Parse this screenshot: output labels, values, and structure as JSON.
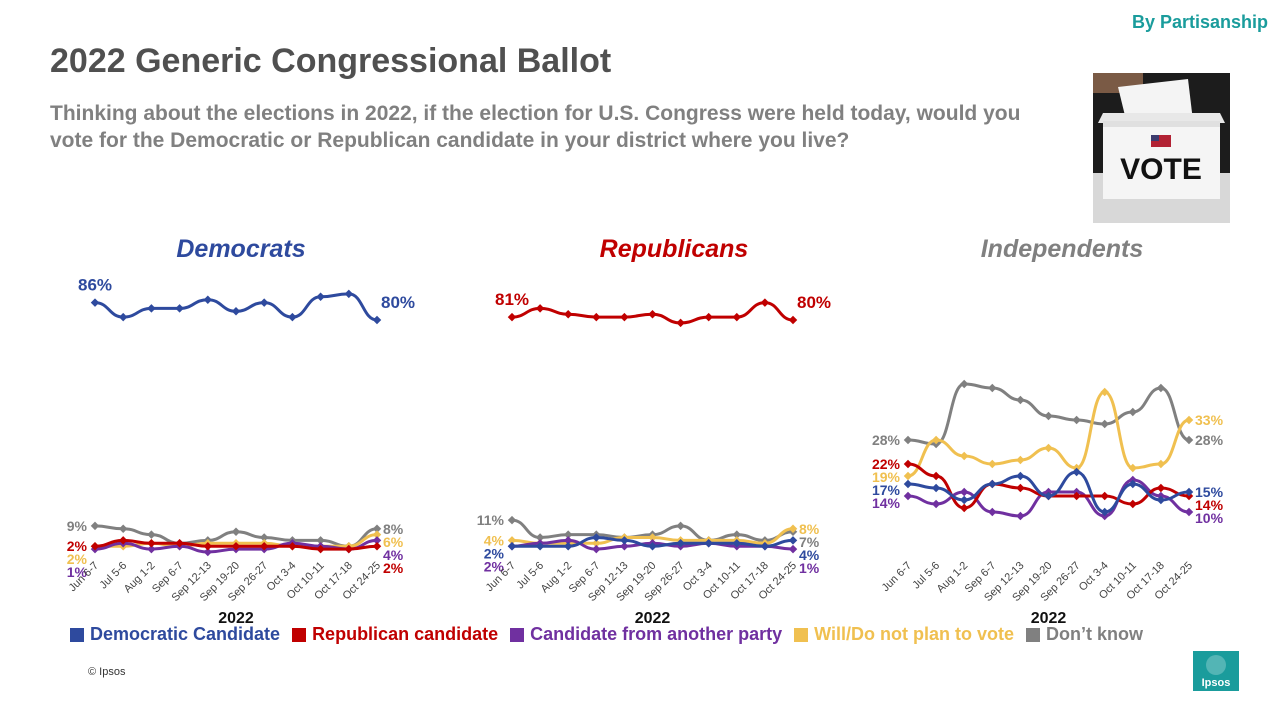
{
  "header": {
    "tag": "By Partisanship",
    "title": "2022 Generic Congressional Ballot",
    "question": "Thinking about the elections in 2022, if the election for U.S. Congress were held today, would you vote for the Democratic or Republican candidate in your district where you live?"
  },
  "image": {
    "vote_text": "VOTE"
  },
  "footer": {
    "copyright": "© Ipsos",
    "logo_text": "Ipsos"
  },
  "legend": [
    {
      "label": "Democratic Candidate",
      "color": "#2e4a9e"
    },
    {
      "label": "Republican candidate",
      "color": "#c00000"
    },
    {
      "label": "Candidate from another party",
      "color": "#7030a0"
    },
    {
      "label": "Will/Do not plan to vote",
      "color": "#f0c050"
    },
    {
      "label": "Don’t know",
      "color": "#808080"
    }
  ],
  "colors": {
    "dem": "#2e4a9e",
    "rep": "#c00000",
    "other": "#7030a0",
    "novote": "#f0c050",
    "dk": "#808080",
    "accent": "#1a9c9c"
  },
  "chart_data": [
    {
      "type": "line",
      "title": "Democrats",
      "title_color": "#2e4a9e",
      "xlabel": "2022",
      "categories": [
        "Jun 6-7",
        "Jul 5-6",
        "Aug 1-2",
        "Sep 6-7",
        "Sep 12-13",
        "Sep 19-20",
        "Sep 26-27",
        "Oct 3-4",
        "Oct 10-11",
        "Oct 17-18",
        "Oct 24-25"
      ],
      "series": [
        {
          "name": "Democratic Candidate",
          "values": [
            86,
            81,
            84,
            84,
            87,
            83,
            86,
            81,
            88,
            89,
            80
          ],
          "labels": {
            "0": "86%",
            "10": "80%"
          }
        },
        {
          "name": "Republican candidate",
          "values": [
            2,
            4,
            3,
            3,
            2,
            2,
            2,
            2,
            1,
            1,
            2
          ],
          "labels": {
            "0": "2%",
            "10": "2%"
          }
        },
        {
          "name": "Candidate from another party",
          "values": [
            1,
            3,
            1,
            2,
            0,
            1,
            1,
            3,
            2,
            1,
            4
          ],
          "labels": {
            "0": "1%",
            "10": "4%"
          }
        },
        {
          "name": "Will/Do not plan to vote",
          "values": [
            2,
            2,
            3,
            2,
            3,
            3,
            3,
            2,
            2,
            2,
            6
          ],
          "labels": {
            "0": "2%",
            "10": "6%"
          }
        },
        {
          "name": "Don’t know",
          "values": [
            9,
            8,
            6,
            3,
            4,
            7,
            5,
            4,
            4,
            2,
            8
          ],
          "labels": {
            "0": "9%",
            "10": "8%"
          }
        }
      ]
    },
    {
      "type": "line",
      "title": "Republicans",
      "title_color": "#c00000",
      "xlabel": "2022",
      "categories": [
        "Jun 6-7",
        "Jul 5-6",
        "Aug 1-2",
        "Sep 6-7",
        "Sep 12-13",
        "Sep 19-20",
        "Sep 26-27",
        "Oct 3-4",
        "Oct 10-11",
        "Oct 17-18",
        "Oct 24-25"
      ],
      "series": [
        {
          "name": "Democratic Candidate",
          "values": [
            2,
            2,
            2,
            5,
            4,
            2,
            3,
            3,
            3,
            2,
            4
          ],
          "labels": {
            "0": "2%",
            "10": "4%"
          }
        },
        {
          "name": "Republican candidate",
          "values": [
            81,
            84,
            82,
            81,
            81,
            82,
            79,
            81,
            81,
            86,
            80
          ],
          "labels": {
            "0": "81%",
            "10": "80%"
          }
        },
        {
          "name": "Candidate from another party",
          "values": [
            2,
            3,
            4,
            1,
            2,
            3,
            2,
            3,
            2,
            2,
            1
          ],
          "labels": {
            "0": "2%",
            "10": "1%"
          }
        },
        {
          "name": "Will/Do not plan to vote",
          "values": [
            4,
            3,
            3,
            3,
            5,
            5,
            4,
            4,
            4,
            3,
            8
          ],
          "labels": {
            "0": "4%",
            "10": "8%"
          }
        },
        {
          "name": "Don’t know",
          "values": [
            11,
            5,
            6,
            6,
            5,
            6,
            9,
            4,
            6,
            4,
            7
          ],
          "labels": {
            "0": "11%",
            "10": "7%"
          }
        }
      ]
    },
    {
      "type": "line",
      "title": "Independents",
      "title_color": "#808080",
      "xlabel": "2022",
      "categories": [
        "Jun 6-7",
        "Jul 5-6",
        "Aug 1-2",
        "Sep 6-7",
        "Sep 12-13",
        "Sep 19-20",
        "Sep 26-27",
        "Oct 3-4",
        "Oct 10-11",
        "Oct 17-18",
        "Oct 24-25"
      ],
      "series": [
        {
          "name": "Democratic Candidate",
          "values": [
            17,
            16,
            13,
            17,
            19,
            14,
            20,
            10,
            17,
            13,
            15
          ],
          "labels": {
            "0": "17%",
            "10": "15%"
          }
        },
        {
          "name": "Republican candidate",
          "values": [
            22,
            19,
            11,
            17,
            16,
            14,
            14,
            14,
            12,
            16,
            14
          ],
          "labels": {
            "0": "22%",
            "10": "14%"
          }
        },
        {
          "name": "Candidate from another party",
          "values": [
            14,
            12,
            15,
            10,
            9,
            15,
            15,
            9,
            18,
            14,
            10
          ],
          "labels": {
            "0": "14%",
            "10": "10%"
          }
        },
        {
          "name": "Will/Do not plan to vote",
          "values": [
            19,
            28,
            24,
            22,
            23,
            26,
            21,
            40,
            21,
            22,
            33
          ],
          "labels": {
            "0": "19%",
            "10": "33%"
          }
        },
        {
          "name": "Don’t know",
          "values": [
            28,
            27,
            42,
            41,
            38,
            34,
            33,
            32,
            35,
            41,
            28
          ],
          "labels": {
            "0": "28%",
            "10": "28%"
          }
        }
      ]
    }
  ]
}
